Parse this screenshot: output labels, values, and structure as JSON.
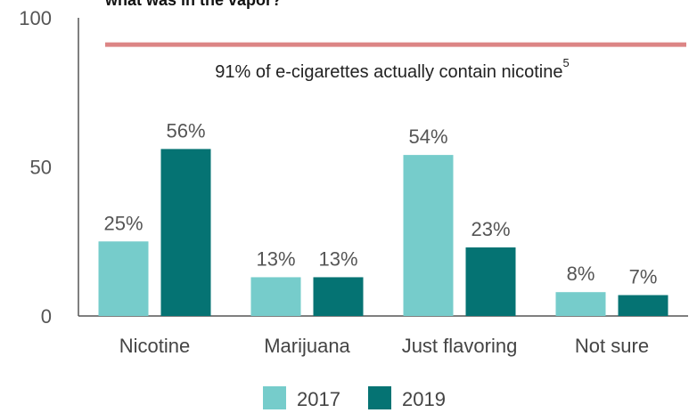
{
  "chart_data": {
    "type": "bar",
    "title": "what was in the vapor?",
    "categories": [
      "Nicotine",
      "Marijuana",
      "Just flavoring",
      "Not sure"
    ],
    "series": [
      {
        "name": "2017",
        "values": [
          25,
          13,
          54,
          8
        ],
        "labels": [
          "25%",
          "13%",
          "54%",
          "8%"
        ]
      },
      {
        "name": "2019",
        "values": [
          56,
          13,
          23,
          7
        ],
        "labels": [
          "56%",
          "13%",
          "23%",
          "7%"
        ]
      }
    ],
    "ylim": [
      0,
      100
    ],
    "yticks": [
      0,
      50,
      100
    ],
    "ytick_labels": [
      "0",
      "50",
      "100"
    ],
    "reference_line": {
      "value": 91,
      "text": "91% of e-cigarettes actually contain nicotine",
      "superscript": "5"
    },
    "legend_position": "bottom",
    "grid": false
  },
  "colors": {
    "series_2017": "#76cccb",
    "series_2019": "#057373",
    "reference_line": "#dc8585",
    "axis": "#555555"
  }
}
